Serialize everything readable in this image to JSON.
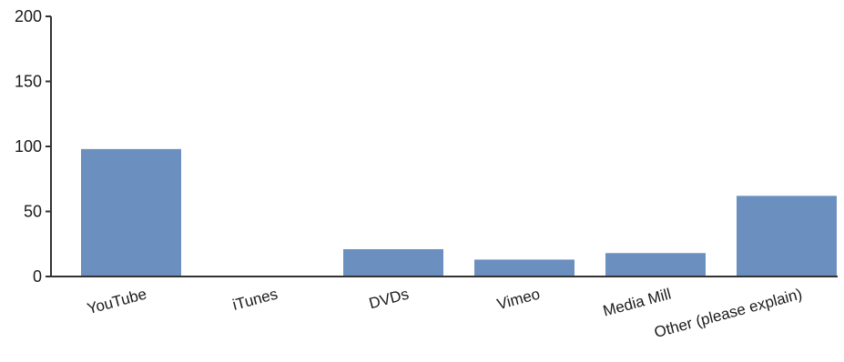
{
  "chart_data": {
    "type": "bar",
    "categories": [
      "YouTube",
      "iTunes",
      "DVDs",
      "Vimeo",
      "Media Mill",
      "Other (please explain)"
    ],
    "values": [
      98,
      0,
      21,
      13,
      18,
      62
    ],
    "ylim": [
      0,
      200
    ],
    "yticks": [
      0,
      50,
      100,
      150,
      200
    ],
    "grid": false,
    "bar_color": "#6b8fbf",
    "axis_color": "#333333"
  }
}
